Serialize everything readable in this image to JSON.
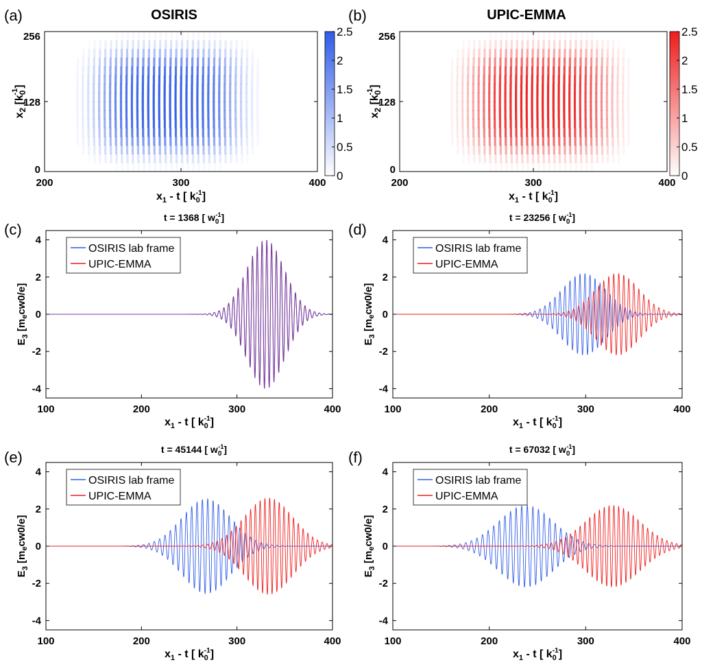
{
  "colors": {
    "blue": "#2f5be8",
    "red": "#ee1c1c",
    "purple": "#7a3a9a",
    "axis": "#000000"
  },
  "chart_data": [
    {
      "panel": "(a)",
      "type": "heatmap",
      "title": "OSIRIS",
      "xlabel": "x",
      "xlabel_sub": "1",
      "xlabel_rest": " - t [ k",
      "xlabel_unit_sub": "0",
      "xlabel_unit_sup": "-1",
      "xlabel_end": "]",
      "ylabel": "x",
      "ylabel_sub": "2",
      "ylabel_rest": " [k",
      "ylabel_unit_sub": "0",
      "ylabel_unit_sup": "-1",
      "ylabel_end": "]",
      "xticks": [
        "200",
        "300",
        "400"
      ],
      "xlim": [
        200,
        400
      ],
      "yticks": [
        "0",
        "128",
        "256"
      ],
      "ylim": [
        0,
        256
      ],
      "colorbar": {
        "ticks": [
          "0",
          "0.5",
          "1",
          "1.5",
          "2",
          "2.5"
        ],
        "range": [
          0,
          2.5
        ],
        "color": "#2f5be8"
      },
      "pulse": {
        "center_x": 290,
        "center_y": 128,
        "width_x": 50,
        "width_y": 95,
        "peak": 2.5
      }
    },
    {
      "panel": "(b)",
      "type": "heatmap",
      "title": "UPIC-EMMA",
      "xlabel": "x",
      "xlabel_sub": "1",
      "xlabel_rest": " - t [ k",
      "xlabel_unit_sub": "0",
      "xlabel_unit_sup": "-1",
      "xlabel_end": "]",
      "ylabel": "x",
      "ylabel_sub": "2",
      "ylabel_rest": " [k",
      "ylabel_unit_sub": "0",
      "ylabel_unit_sup": "-1",
      "ylabel_end": "]",
      "xticks": [
        "200",
        "300",
        "400"
      ],
      "xlim": [
        200,
        400
      ],
      "yticks": [
        "0",
        "128",
        "256"
      ],
      "ylim": [
        0,
        256
      ],
      "colorbar": {
        "ticks": [
          "0",
          "0.5",
          "1",
          "1.5",
          "2",
          "2.5"
        ],
        "range": [
          0,
          2.5
        ],
        "color": "#ee1c1c"
      },
      "pulse": {
        "center_x": 305,
        "center_y": 128,
        "width_x": 50,
        "width_y": 95,
        "peak": 2.5
      }
    },
    {
      "panel": "(c)",
      "type": "line",
      "title_prefix": "t = 1368 [ w",
      "title_sub": "0",
      "title_sup": "-1",
      "title_end": "]",
      "ylabel_main": "E",
      "ylabel_sub": "3",
      "ylabel_rest": " [m",
      "ylabel_e_sub": "e",
      "ylabel_tail": "cw0/e]",
      "xlabel": "x",
      "xlabel_sub": "1",
      "xlabel_rest": " - t [ k",
      "xlabel_unit_sub": "0",
      "xlabel_unit_sup": "-1",
      "xlabel_end": "]",
      "xticks": [
        "100",
        "200",
        "300",
        "400"
      ],
      "xlim": [
        100,
        400
      ],
      "yticks": [
        "-4",
        "-2",
        "0",
        "2",
        "4"
      ],
      "ylim": [
        -4.5,
        4.5
      ],
      "series": [
        {
          "name": "OSIRIS lab frame",
          "color": "#2f5be8",
          "center": 330,
          "width": 28,
          "amp": 4.0,
          "period": 5.0
        },
        {
          "name": "UPIC-EMMA",
          "color": "#ee1c1c",
          "center": 330,
          "width": 28,
          "amp": 4.0,
          "period": 5.0
        }
      ],
      "overlap": true
    },
    {
      "panel": "(d)",
      "type": "line",
      "title_prefix": "t = 23256 [ w",
      "title_sub": "0",
      "title_sup": "-1",
      "title_end": "]",
      "ylabel_main": "E",
      "ylabel_sub": "3",
      "ylabel_rest": " [m",
      "ylabel_e_sub": "e",
      "ylabel_tail": "cw0/e]",
      "xlabel": "x",
      "xlabel_sub": "1",
      "xlabel_rest": " - t [ k",
      "xlabel_unit_sub": "0",
      "xlabel_unit_sup": "-1",
      "xlabel_end": "]",
      "xticks": [
        "100",
        "200",
        "300",
        "400"
      ],
      "xlim": [
        100,
        400
      ],
      "yticks": [
        "-4",
        "-2",
        "0",
        "2",
        "4"
      ],
      "ylim": [
        -4.5,
        4.5
      ],
      "series": [
        {
          "name": "OSIRIS lab frame",
          "color": "#2f5be8",
          "center": 298,
          "width": 32,
          "amp": 2.2,
          "period": 5.2
        },
        {
          "name": "UPIC-EMMA",
          "color": "#ee1c1c",
          "center": 333,
          "width": 32,
          "amp": 2.2,
          "period": 5.2
        }
      ]
    },
    {
      "panel": "(e)",
      "type": "line",
      "title_prefix": "t = 45144 [ w",
      "title_sub": "0",
      "title_sup": "-1",
      "title_end": "]",
      "ylabel_main": "E",
      "ylabel_sub": "3",
      "ylabel_rest": " [m",
      "ylabel_e_sub": "e",
      "ylabel_tail": "cw0/e]",
      "xlabel": "x",
      "xlabel_sub": "1",
      "xlabel_rest": " - t [ k",
      "xlabel_unit_sub": "0",
      "xlabel_unit_sup": "-1",
      "xlabel_end": "]",
      "xticks": [
        "100",
        "200",
        "300",
        "400"
      ],
      "xlim": [
        100,
        400
      ],
      "yticks": [
        "-4",
        "-2",
        "0",
        "2",
        "4"
      ],
      "ylim": [
        -4.5,
        4.5
      ],
      "series": [
        {
          "name": "OSIRIS lab frame",
          "color": "#2f5be8",
          "center": 268,
          "width": 36,
          "amp": 2.55,
          "period": 5.6
        },
        {
          "name": "UPIC-EMMA",
          "color": "#ee1c1c",
          "center": 333,
          "width": 36,
          "amp": 2.6,
          "period": 5.0
        }
      ]
    },
    {
      "panel": "(f)",
      "type": "line",
      "title_prefix": "t = 67032 [ w",
      "title_sub": "0",
      "title_sup": "-1",
      "title_end": "]",
      "ylabel_main": "E",
      "ylabel_sub": "3",
      "ylabel_rest": " [m",
      "ylabel_e_sub": "e",
      "ylabel_tail": "cw0/e]",
      "xlabel": "x",
      "xlabel_sub": "1",
      "xlabel_rest": " - t [ k",
      "xlabel_unit_sub": "0",
      "xlabel_unit_sup": "-1",
      "xlabel_end": "]",
      "xticks": [
        "100",
        "200",
        "300",
        "400"
      ],
      "xlim": [
        100,
        400
      ],
      "yticks": [
        "-4",
        "-2",
        "0",
        "2",
        "4"
      ],
      "ylim": [
        -4.5,
        4.5
      ],
      "series": [
        {
          "name": "OSIRIS lab frame",
          "color": "#2f5be8",
          "center": 238,
          "width": 40,
          "amp": 2.2,
          "period": 5.8
        },
        {
          "name": "UPIC-EMMA",
          "color": "#ee1c1c",
          "center": 328,
          "width": 40,
          "amp": 2.2,
          "period": 5.0
        }
      ]
    }
  ]
}
